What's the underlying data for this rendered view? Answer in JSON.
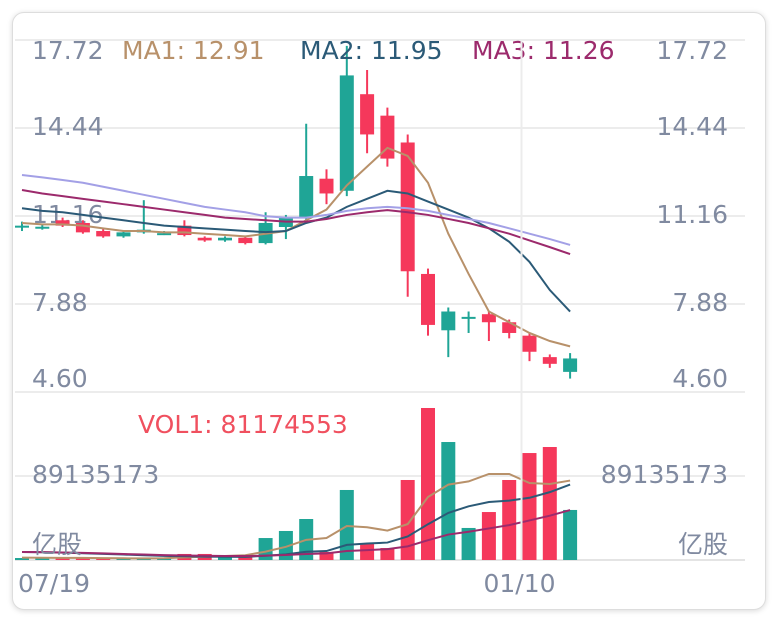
{
  "chart_data": [
    {
      "type": "candlestick",
      "up_color": "#1fa596",
      "down_color": "#f5385b",
      "open": [
        10.75,
        10.72,
        11.0,
        10.9,
        10.6,
        10.4,
        10.55,
        10.5,
        10.8,
        10.35,
        10.25,
        10.35,
        10.15,
        10.75,
        11.1,
        12.55,
        12.1,
        15.7,
        14.9,
        13.9,
        9.0,
        6.9,
        7.35,
        7.5,
        7.2,
        6.7,
        5.9,
        5.35
      ],
      "close": [
        10.8,
        10.76,
        10.8,
        10.55,
        10.4,
        10.55,
        10.65,
        10.52,
        10.45,
        10.25,
        10.35,
        10.15,
        10.9,
        11.1,
        12.65,
        12.0,
        16.4,
        14.2,
        13.3,
        9.1,
        7.1,
        7.6,
        7.4,
        7.2,
        6.8,
        6.1,
        5.65,
        5.85
      ],
      "high": [
        10.95,
        10.85,
        11.1,
        11.0,
        10.7,
        10.6,
        11.75,
        10.6,
        11.0,
        10.4,
        10.4,
        10.4,
        11.3,
        11.2,
        14.6,
        12.9,
        17.5,
        16.6,
        15.2,
        14.2,
        9.2,
        7.75,
        7.6,
        7.6,
        7.3,
        6.8,
        6.0,
        6.05
      ],
      "low": [
        10.6,
        10.65,
        10.75,
        10.5,
        10.35,
        10.35,
        10.5,
        10.45,
        10.4,
        10.2,
        10.2,
        10.1,
        10.1,
        10.3,
        10.9,
        11.6,
        11.9,
        13.5,
        13.0,
        8.15,
        6.7,
        5.9,
        6.8,
        6.5,
        6.6,
        5.75,
        5.5,
        5.1
      ],
      "lines": [
        {
          "name": "MA1: 12.91",
          "color": "#b8916a",
          "values": [
            10.9,
            10.85,
            10.85,
            10.8,
            10.7,
            10.6,
            10.6,
            10.55,
            10.55,
            10.5,
            10.45,
            10.4,
            10.5,
            10.6,
            11.0,
            11.4,
            12.3,
            13.0,
            13.7,
            13.4,
            12.4,
            10.5,
            9.0,
            7.6,
            7.2,
            6.8,
            6.5,
            6.3
          ]
        },
        {
          "name": "MA2: 11.95",
          "color": "#2b5a77",
          "values": [
            11.45,
            11.35,
            11.3,
            11.2,
            11.1,
            11.0,
            10.9,
            10.8,
            10.75,
            10.7,
            10.65,
            10.6,
            10.56,
            10.6,
            10.9,
            11.1,
            11.5,
            11.8,
            12.1,
            12.0,
            11.7,
            11.4,
            11.1,
            10.7,
            10.2,
            9.45,
            8.4,
            7.6
          ]
        },
        {
          "name": "MA3: 11.26",
          "color": "#9c2a6c",
          "values": [
            12.13,
            12.0,
            11.9,
            11.8,
            11.7,
            11.6,
            11.5,
            11.4,
            11.3,
            11.2,
            11.1,
            11.05,
            11.0,
            10.95,
            10.95,
            11.05,
            11.2,
            11.3,
            11.38,
            11.3,
            11.2,
            11.05,
            10.9,
            10.7,
            10.5,
            10.25,
            10.0,
            9.74
          ]
        },
        {
          "color": "#a3a0e6",
          "values": [
            12.69,
            12.6,
            12.5,
            12.4,
            12.25,
            12.1,
            11.95,
            11.8,
            11.65,
            11.5,
            11.4,
            11.3,
            11.15,
            11.1,
            11.1,
            11.2,
            11.35,
            11.45,
            11.5,
            11.45,
            11.35,
            11.2,
            11.05,
            10.9,
            10.7,
            10.5,
            10.3,
            10.08
          ]
        }
      ],
      "ylim": [
        4.6,
        17.72
      ],
      "yticks": [
        {
          "value": 17.72,
          "label": "17.72"
        },
        {
          "value": 14.44,
          "label": "14.44"
        },
        {
          "value": 11.16,
          "label": "11.16"
        },
        {
          "value": 7.88,
          "label": "7.88"
        },
        {
          "value": 4.6,
          "label": "4.60"
        }
      ],
      "grid": true
    },
    {
      "type": "bar",
      "label": "VOL1: 81174553",
      "label_color": "#f0505f",
      "unit_label": "亿股",
      "categories": [
        "07/19",
        null,
        null,
        null,
        null,
        null,
        null,
        null,
        null,
        null,
        null,
        null,
        null,
        null,
        null,
        null,
        null,
        null,
        null,
        null,
        null,
        null,
        null,
        null,
        null,
        "01/10",
        null,
        null
      ],
      "values": [
        2100000,
        2100000,
        2100000,
        2100000,
        1100000,
        1100000,
        2100000,
        2100000,
        6400000,
        6400000,
        4200000,
        5300000,
        23300000,
        30800000,
        43500000,
        8500000,
        74300000,
        17000000,
        12700000,
        84900000,
        161300000,
        125200000,
        34000000,
        50900000,
        84900000,
        113500000,
        119900000,
        53100000
      ],
      "lines": [
        {
          "color": "#b8916a",
          "values": [
            2500000,
            2400000,
            2300000,
            2200000,
            2000000,
            1800000,
            1700000,
            1800000,
            2800000,
            3500000,
            4300000,
            5100000,
            8900000,
            14000000,
            21400000,
            23300000,
            36100000,
            34800000,
            31200000,
            38100000,
            66800000,
            80000000,
            83400000,
            91300000,
            91300000,
            81700000,
            80600000,
            84300000
          ]
        },
        {
          "color": "#2b5a77",
          "values": [
            8500000,
            8200000,
            7800000,
            7200000,
            6500000,
            5800000,
            5000000,
            4400000,
            4000000,
            3600000,
            3400000,
            3300000,
            4500000,
            6000000,
            8700000,
            9500000,
            16000000,
            17500000,
            18500000,
            25000000,
            38000000,
            50000000,
            57000000,
            61500000,
            63000000,
            66000000,
            72000000,
            80000000
          ]
        },
        {
          "color": "#9c2a6c",
          "values": [
            8500000,
            8300000,
            8000000,
            7600000,
            7000000,
            6400000,
            5800000,
            5200000,
            4800000,
            4500000,
            4300000,
            4200000,
            4600000,
            5300000,
            6400000,
            7000000,
            9500000,
            10500000,
            11500000,
            14500000,
            21000000,
            27000000,
            30000000,
            33500000,
            37000000,
            42000000,
            47000000,
            53000000
          ]
        }
      ],
      "ylim": [
        0,
        178270346
      ],
      "yticks": [
        89135173
      ],
      "grid": true
    }
  ]
}
